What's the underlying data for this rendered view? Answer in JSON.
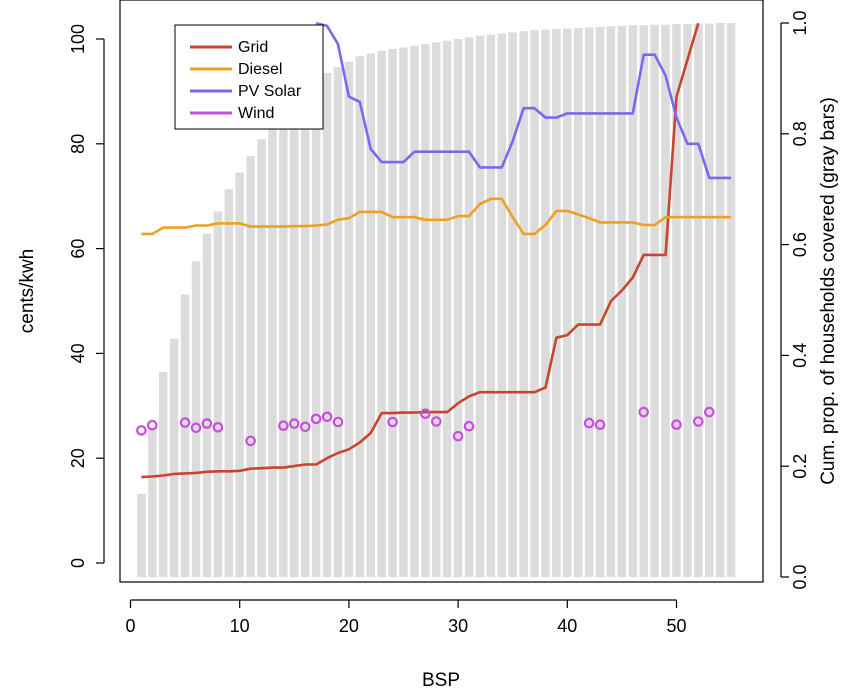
{
  "chart_data": {
    "type": "line",
    "xlabel": "BSP",
    "ylabel": "cents/kwh",
    "y2label": "Cum. prop. of households covered (gray bars)",
    "xlim": [
      0,
      55
    ],
    "ylim": [
      0,
      100
    ],
    "y2lim": [
      0,
      1
    ],
    "x_ticks": [
      0,
      10,
      20,
      30,
      40,
      50
    ],
    "y_ticks": [
      0,
      20,
      40,
      60,
      80,
      100
    ],
    "y2_ticks": [
      "0.0",
      "0.2",
      "0.4",
      "0.6",
      "0.8",
      "1.0"
    ],
    "y2_tick_values": [
      0,
      0.2,
      0.4,
      0.6,
      0.8,
      1.0
    ],
    "legend_position": "top-left",
    "bars": {
      "name": "Cum. prop. of households covered",
      "color": "#dcdcdc",
      "x": [
        1,
        2,
        3,
        4,
        5,
        6,
        7,
        8,
        9,
        10,
        11,
        12,
        13,
        14,
        15,
        16,
        17,
        18,
        19,
        20,
        21,
        22,
        23,
        24,
        25,
        26,
        27,
        28,
        29,
        30,
        31,
        32,
        33,
        34,
        35,
        36,
        37,
        38,
        39,
        40,
        41,
        42,
        43,
        44,
        45,
        46,
        47,
        48,
        49,
        50,
        51,
        52,
        53,
        54,
        55
      ],
      "values": [
        0.15,
        0.27,
        0.37,
        0.43,
        0.51,
        0.57,
        0.62,
        0.66,
        0.7,
        0.73,
        0.76,
        0.79,
        0.82,
        0.855,
        0.88,
        0.89,
        0.9,
        0.91,
        0.92,
        0.93,
        0.94,
        0.945,
        0.95,
        0.953,
        0.956,
        0.959,
        0.962,
        0.965,
        0.968,
        0.971,
        0.974,
        0.977,
        0.979,
        0.981,
        0.983,
        0.985,
        0.987,
        0.988,
        0.989,
        0.99,
        0.991,
        0.992,
        0.993,
        0.994,
        0.995,
        0.996,
        0.996,
        0.997,
        0.997,
        0.998,
        0.998,
        0.999,
        0.999,
        1.0,
        1.0
      ]
    },
    "series": [
      {
        "name": "Grid",
        "color": "#c8452f",
        "x": [
          1,
          2,
          3,
          4,
          5,
          6,
          7,
          8,
          9,
          10,
          11,
          12,
          13,
          14,
          15,
          16,
          17,
          18,
          19,
          20,
          21,
          22,
          23,
          24,
          25,
          26,
          27,
          28,
          29,
          30,
          31,
          32,
          33,
          34,
          35,
          36,
          37,
          38,
          39,
          40,
          41,
          42,
          43,
          44,
          45,
          46,
          47,
          48,
          49,
          50,
          51,
          52
        ],
        "y": [
          16.4,
          16.5,
          16.7,
          17.0,
          17.1,
          17.2,
          17.4,
          17.5,
          17.5,
          17.6,
          18.0,
          18.1,
          18.2,
          18.2,
          18.5,
          18.8,
          18.8,
          20.0,
          21.0,
          21.7,
          23.0,
          24.8,
          28.6,
          28.6,
          28.7,
          28.7,
          28.8,
          28.8,
          28.8,
          30.5,
          31.8,
          32.6,
          32.6,
          32.6,
          32.6,
          32.6,
          32.6,
          33.5,
          43.0,
          43.5,
          45.5,
          45.5,
          45.5,
          50.0,
          52.0,
          54.5,
          58.8,
          58.8,
          58.8,
          89.0,
          96.0,
          103.0
        ]
      },
      {
        "name": "Diesel",
        "color": "#f0a020",
        "x": [
          1,
          2,
          3,
          4,
          5,
          6,
          7,
          8,
          9,
          10,
          11,
          12,
          13,
          14,
          15,
          16,
          17,
          18,
          19,
          20,
          21,
          22,
          23,
          24,
          25,
          26,
          27,
          28,
          29,
          30,
          31,
          32,
          33,
          34,
          35,
          36,
          37,
          38,
          39,
          40,
          41,
          42,
          43,
          44,
          45,
          46,
          47,
          48,
          49,
          50,
          51,
          52,
          53,
          54,
          55
        ],
        "y": [
          62.8,
          62.8,
          64.0,
          64.0,
          64.0,
          64.4,
          64.4,
          64.8,
          64.8,
          64.8,
          64.2,
          64.2,
          64.2,
          64.2,
          64.3,
          64.3,
          64.4,
          64.6,
          65.5,
          65.8,
          67.0,
          67.0,
          67.0,
          66.0,
          66.0,
          66.0,
          65.5,
          65.5,
          65.5,
          66.2,
          66.2,
          68.5,
          69.5,
          69.5,
          66.0,
          62.8,
          62.8,
          64.5,
          67.2,
          67.2,
          66.5,
          65.8,
          65.0,
          65.0,
          65.0,
          65.0,
          64.5,
          64.5,
          66.0,
          66.0,
          66.0,
          66.0,
          66.0,
          66.0,
          66.0
        ]
      },
      {
        "name": "PV Solar",
        "color": "#7b68ee",
        "x": [
          17,
          18,
          19,
          20,
          21,
          22,
          23,
          24,
          25,
          26,
          27,
          28,
          29,
          30,
          31,
          32,
          33,
          34,
          35,
          36,
          37,
          38,
          39,
          40,
          41,
          42,
          43,
          44,
          45,
          46,
          47,
          48,
          49,
          50,
          51,
          52,
          53,
          54,
          55
        ],
        "y": [
          103,
          102.5,
          99.0,
          89.0,
          88.0,
          79.0,
          76.5,
          76.5,
          76.5,
          78.5,
          78.5,
          78.5,
          78.5,
          78.5,
          78.5,
          75.5,
          75.5,
          75.5,
          80.5,
          86.8,
          86.8,
          85.0,
          85.0,
          85.8,
          85.8,
          85.8,
          85.8,
          85.8,
          85.8,
          85.8,
          97.0,
          97.0,
          93.0,
          85.0,
          80.0,
          80.0,
          73.5,
          73.5,
          73.5
        ]
      },
      {
        "name": "Wind",
        "color": "#c94ce0",
        "marker": "circle",
        "x": [
          1,
          2,
          5,
          6,
          7,
          8,
          11,
          14,
          15,
          16,
          17,
          18,
          19,
          24,
          27,
          28,
          30,
          31,
          42,
          43,
          47,
          50,
          52,
          53
        ],
        "y": [
          25.3,
          26.3,
          26.8,
          25.8,
          26.6,
          25.9,
          23.3,
          26.2,
          26.6,
          26.0,
          27.5,
          27.9,
          26.9,
          26.9,
          28.5,
          27.0,
          24.2,
          26.1,
          26.7,
          26.4,
          28.8,
          26.4,
          27.0,
          28.8
        ]
      }
    ]
  }
}
